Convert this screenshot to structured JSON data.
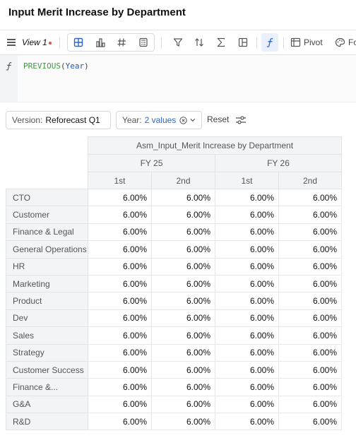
{
  "title": "Input Merit Increase by Department",
  "toolbar": {
    "view_name": "View 1",
    "pivot_label": "Pivot",
    "format_label": "Fo"
  },
  "formula": {
    "fn": "PREVIOUS",
    "open": "(",
    "arg": "Year",
    "close": ")"
  },
  "filters": {
    "version_label": "Version:",
    "version_value": "Reforecast Q1",
    "year_label": "Year:",
    "year_value": "2 values",
    "reset_label": "Reset"
  },
  "table": {
    "header": "Asm_Input_Merit Increase by Department",
    "years": [
      "FY 25",
      "FY 26"
    ],
    "halves": [
      "1st",
      "2nd",
      "1st",
      "2nd"
    ],
    "rows": [
      {
        "label": "CTO",
        "values": [
          "6.00%",
          "6.00%",
          "6.00%",
          "6.00%"
        ]
      },
      {
        "label": "Customer",
        "values": [
          "6.00%",
          "6.00%",
          "6.00%",
          "6.00%"
        ]
      },
      {
        "label": "Finance & Legal",
        "values": [
          "6.00%",
          "6.00%",
          "6.00%",
          "6.00%"
        ]
      },
      {
        "label": "General Operations",
        "values": [
          "6.00%",
          "6.00%",
          "6.00%",
          "6.00%"
        ]
      },
      {
        "label": "HR",
        "values": [
          "6.00%",
          "6.00%",
          "6.00%",
          "6.00%"
        ]
      },
      {
        "label": "Marketing",
        "values": [
          "6.00%",
          "6.00%",
          "6.00%",
          "6.00%"
        ]
      },
      {
        "label": "Product",
        "values": [
          "6.00%",
          "6.00%",
          "6.00%",
          "6.00%"
        ]
      },
      {
        "label": "Dev",
        "values": [
          "6.00%",
          "6.00%",
          "6.00%",
          "6.00%"
        ]
      },
      {
        "label": "Sales",
        "values": [
          "6.00%",
          "6.00%",
          "6.00%",
          "6.00%"
        ]
      },
      {
        "label": "Strategy",
        "values": [
          "6.00%",
          "6.00%",
          "6.00%",
          "6.00%"
        ]
      },
      {
        "label": "Customer Success",
        "values": [
          "6.00%",
          "6.00%",
          "6.00%",
          "6.00%"
        ]
      },
      {
        "label": "Finance &...",
        "values": [
          "6.00%",
          "6.00%",
          "6.00%",
          "6.00%"
        ]
      },
      {
        "label": "G&A",
        "values": [
          "6.00%",
          "6.00%",
          "6.00%",
          "6.00%"
        ]
      },
      {
        "label": "R&D",
        "values": [
          "6.00%",
          "6.00%",
          "6.00%",
          "6.00%"
        ]
      }
    ]
  }
}
